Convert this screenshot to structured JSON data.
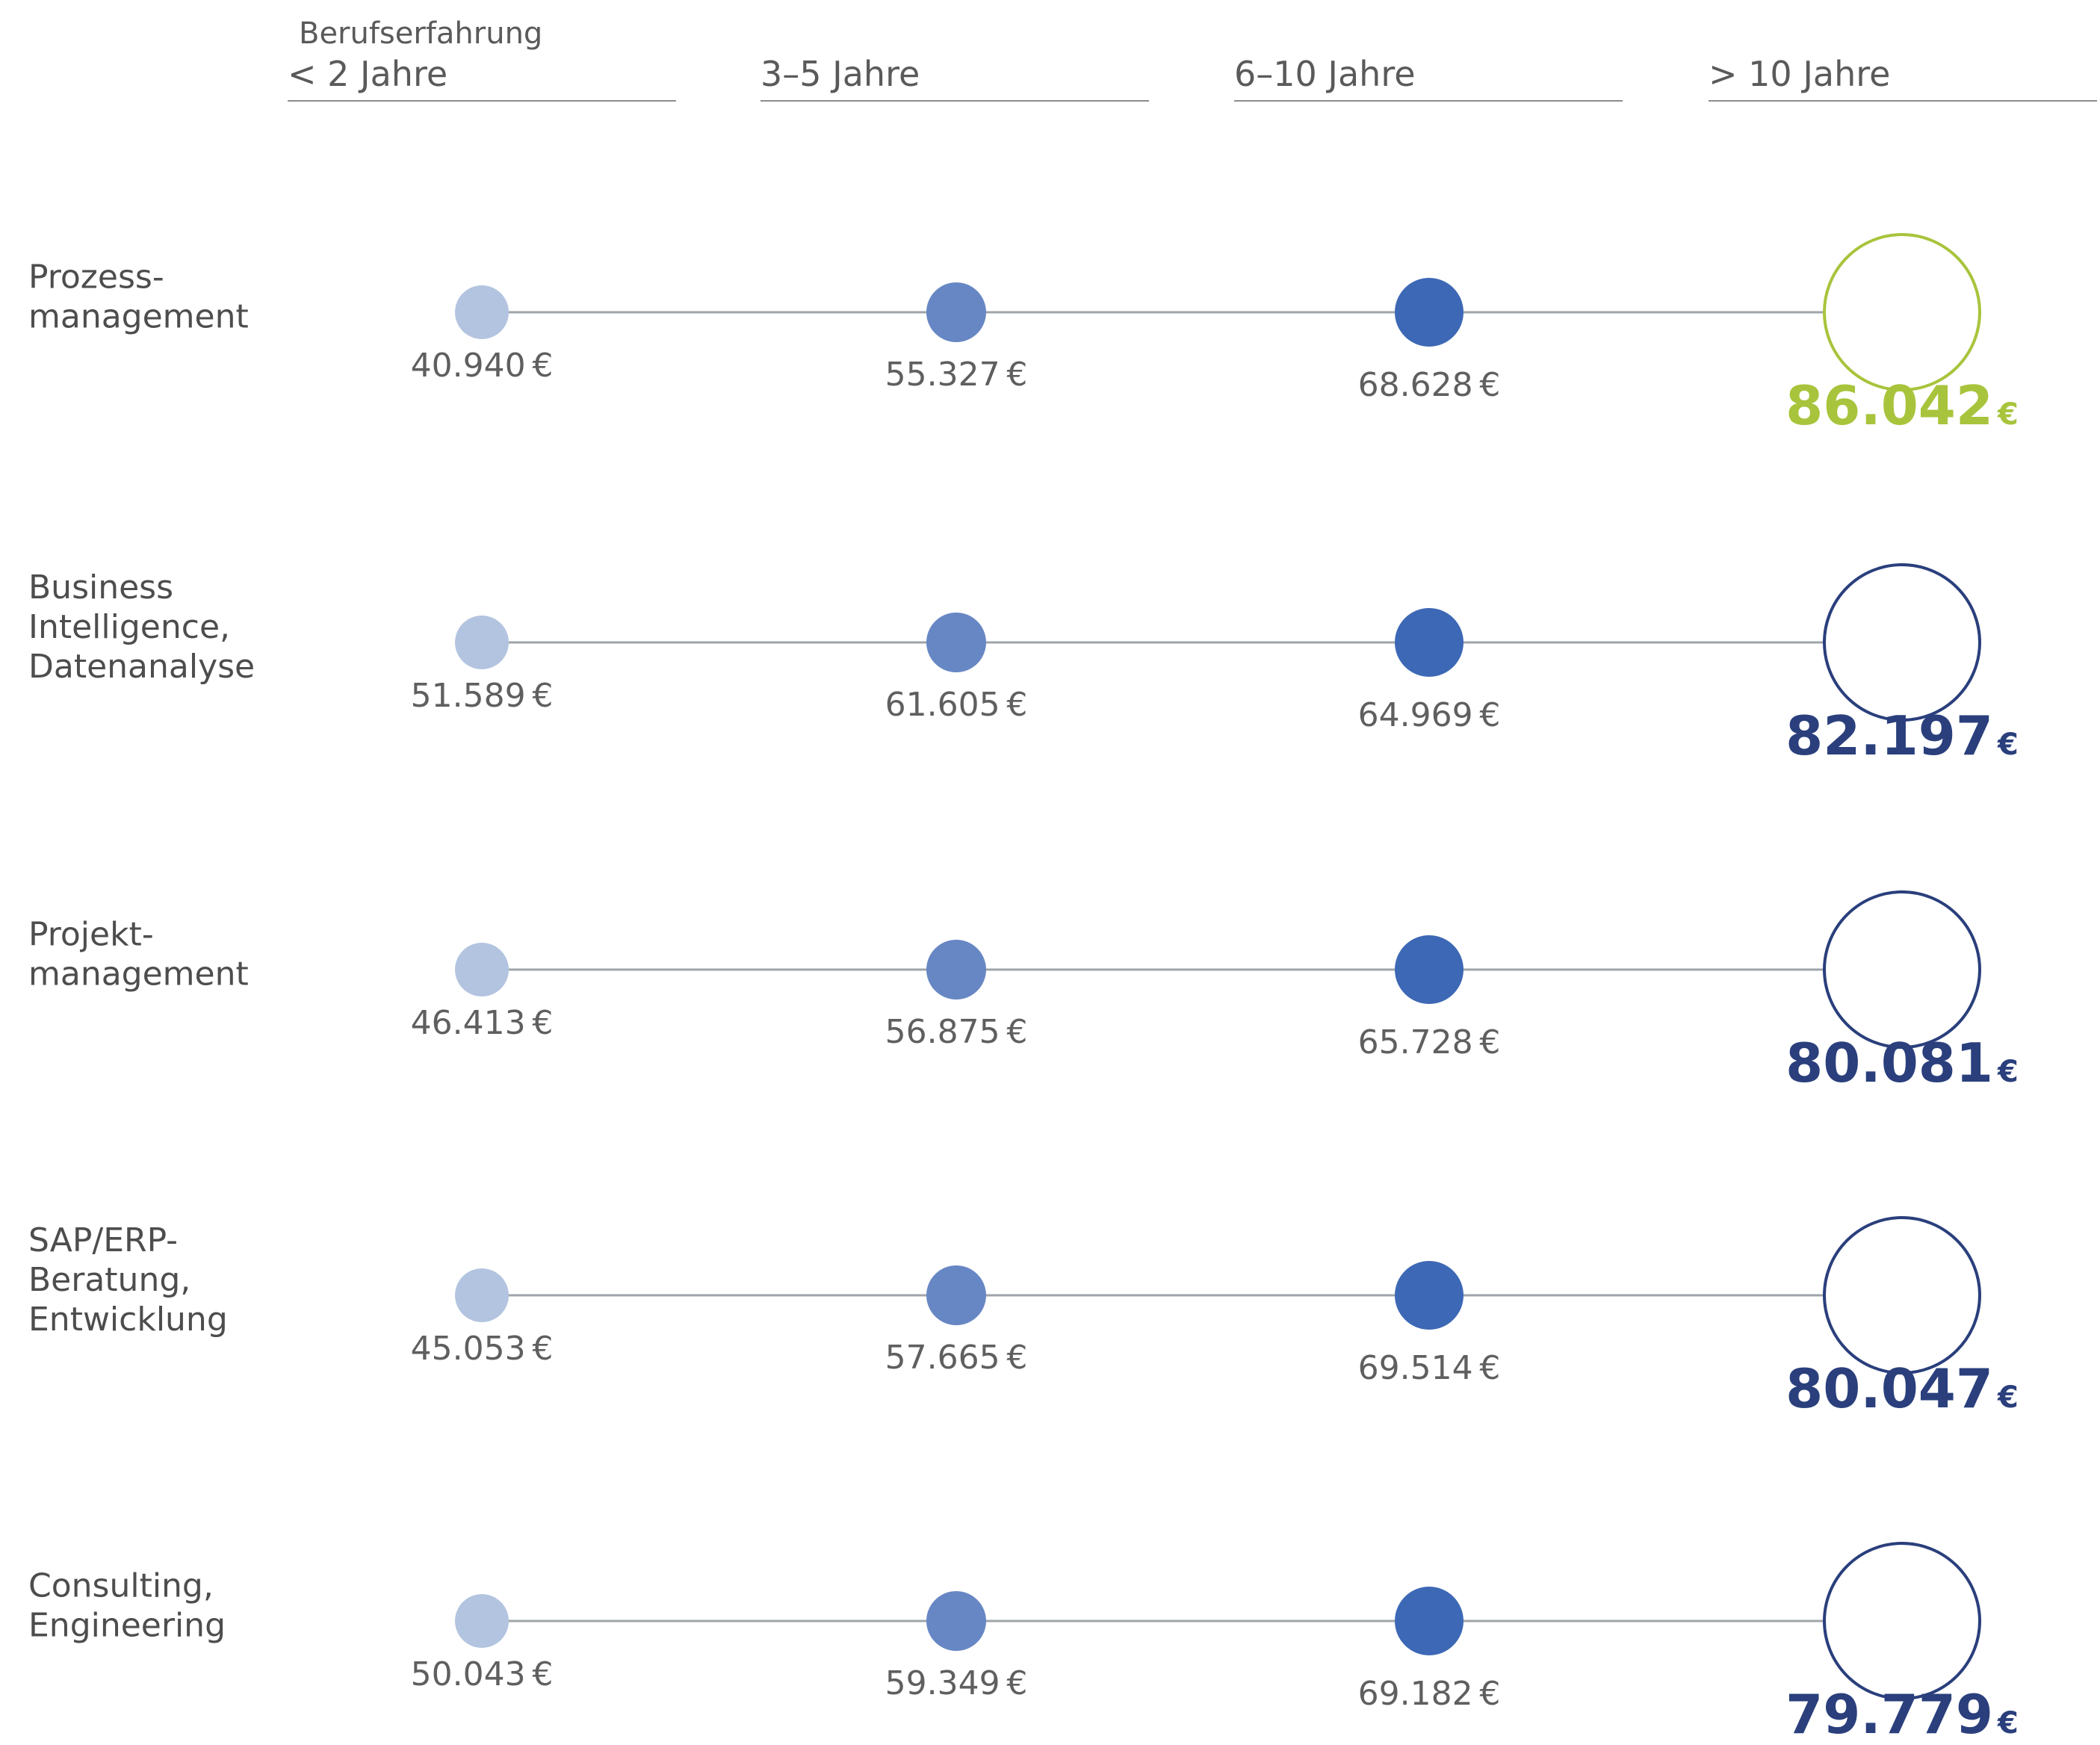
{
  "chart_data": {
    "type": "dot-timeline",
    "header_title": "Berufserfahrung",
    "categories": [
      "< 2 Jahre",
      "3–5 Jahre",
      "6–10 Jahre",
      "> 10 Jahre"
    ],
    "currency_symbol": "€",
    "rows": [
      {
        "label_lines": [
          "Prozess-",
          "management"
        ],
        "values": [
          40940,
          55327,
          68628,
          86042
        ],
        "value_labels": [
          "40.940",
          "55.327",
          "68.628",
          "86.042"
        ],
        "highlight": true
      },
      {
        "label_lines": [
          "Business",
          "Intelligence,",
          "Datenanalyse"
        ],
        "values": [
          51589,
          61605,
          64969,
          82197
        ],
        "value_labels": [
          "51.589",
          "61.605",
          "64.969",
          "82.197"
        ],
        "highlight": false
      },
      {
        "label_lines": [
          "Projekt-",
          "management"
        ],
        "values": [
          46413,
          56875,
          65728,
          80081
        ],
        "value_labels": [
          "46.413",
          "56.875",
          "65.728",
          "80.081"
        ],
        "highlight": false
      },
      {
        "label_lines": [
          "SAP/ERP-",
          "Beratung,",
          "Entwicklung"
        ],
        "values": [
          45053,
          57665,
          69514,
          80047
        ],
        "value_labels": [
          "45.053",
          "57.665",
          "69.514",
          "80.047"
        ],
        "highlight": false
      },
      {
        "label_lines": [
          "Consulting,",
          "Engineering"
        ],
        "values": [
          50043,
          59349,
          69182,
          79779
        ],
        "value_labels": [
          "50.043",
          "59.349",
          "69.182",
          "79.779"
        ],
        "highlight": false
      }
    ]
  },
  "colors": {
    "level_1": "#b3c4e0",
    "level_2": "#6787c4",
    "level_3": "#3d68b5",
    "top_ring": "#2a3f7c",
    "top_text": "#2a3f7c",
    "highlight": "#a8c43c",
    "connector": "#9fa4aa",
    "header_rule": "#8c8c8c"
  }
}
